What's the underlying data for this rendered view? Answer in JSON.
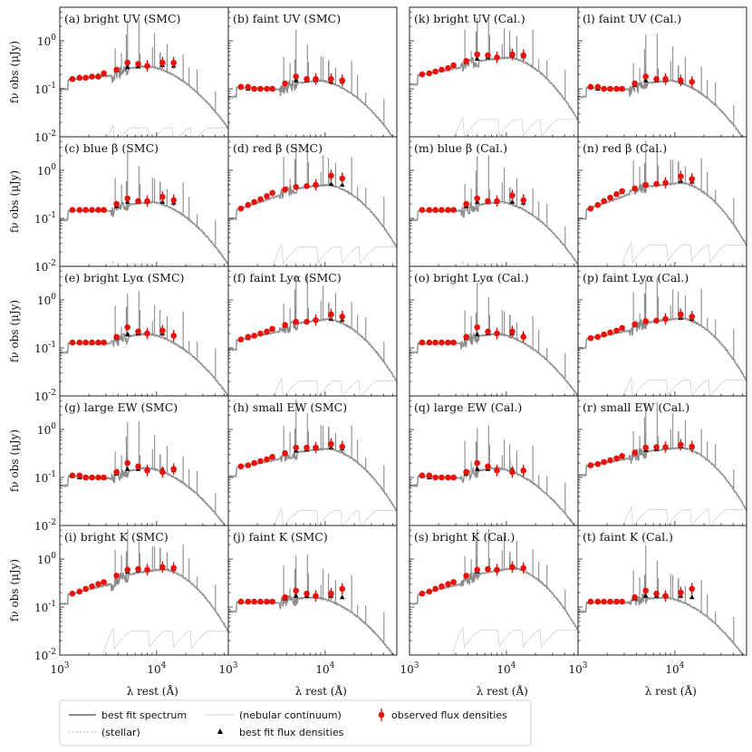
{
  "figure": {
    "ylabel": "fν obs (μJy)",
    "xlabel": "λ rest (Å)",
    "x_tick_labels": [
      "10^3",
      "10^4"
    ],
    "y_tick_labels": [
      "10^0",
      "10^-1",
      "10^-2"
    ]
  },
  "legend": {
    "spectrum": "best fit spectrum",
    "stellar": "(stellar)",
    "nebular": "(nebular continuum)",
    "model_flux": "best fit flux densities",
    "observed": "observed flux densities"
  },
  "colors": {
    "spectrum": "#8c8c8c",
    "stellar": "#b5b5b5",
    "nebular": "#d0d0d0",
    "observed": "#e8120c",
    "model": "#000000"
  },
  "chart_data": {
    "type": "scatter",
    "x_scale": "log",
    "y_scale": "log",
    "xlim": [
      1000,
      55000
    ],
    "ylim": [
      0.01,
      5
    ],
    "band_wavelengths": [
      1350,
      1600,
      1850,
      2150,
      2500,
      2850,
      3850,
      5000,
      6450,
      8000,
      11500,
      15000
    ],
    "panels": [
      {
        "label": "(a) bright UV (SMC)",
        "continuum": 0.3,
        "peak_w": 8000,
        "obs": [
          0.16,
          0.17,
          0.17,
          0.18,
          0.18,
          0.21,
          0.25,
          0.35,
          0.33,
          0.3,
          0.35,
          0.35
        ],
        "model": [
          0.16,
          0.17,
          0.17,
          0.18,
          0.19,
          0.2,
          0.24,
          0.28,
          0.29,
          0.29,
          0.31,
          0.3
        ]
      },
      {
        "label": "(b) faint UV (SMC)",
        "continuum": 0.15,
        "peak_w": 9000,
        "obs": [
          0.11,
          0.11,
          0.1,
          0.1,
          0.1,
          0.1,
          0.13,
          0.18,
          0.16,
          0.16,
          0.16,
          0.15
        ],
        "model": [
          0.11,
          0.1,
          0.1,
          0.1,
          0.1,
          0.1,
          0.13,
          0.15,
          0.15,
          0.15,
          0.14,
          0.14
        ]
      },
      {
        "label": "(k) bright UV (Cal.)",
        "continuum": 0.45,
        "peak_w": 11000,
        "obs": [
          0.2,
          0.21,
          0.23,
          0.25,
          0.27,
          0.31,
          0.38,
          0.52,
          0.5,
          0.45,
          0.52,
          0.5
        ],
        "model": [
          0.2,
          0.21,
          0.23,
          0.25,
          0.27,
          0.3,
          0.36,
          0.42,
          0.45,
          0.47,
          0.49,
          0.47
        ]
      },
      {
        "label": "(l) faint UV (Cal.)",
        "continuum": 0.15,
        "peak_w": 9000,
        "obs": [
          0.11,
          0.11,
          0.1,
          0.1,
          0.1,
          0.1,
          0.13,
          0.18,
          0.16,
          0.16,
          0.15,
          0.14
        ],
        "model": [
          0.11,
          0.1,
          0.1,
          0.1,
          0.1,
          0.1,
          0.12,
          0.15,
          0.15,
          0.15,
          0.14,
          0.14
        ]
      },
      {
        "label": "(c) blue β (SMC)",
        "continuum": 0.22,
        "peak_w": 9000,
        "obs": [
          0.15,
          0.15,
          0.15,
          0.15,
          0.15,
          0.15,
          0.2,
          0.26,
          0.23,
          0.23,
          0.28,
          0.24
        ],
        "model": [
          0.15,
          0.15,
          0.15,
          0.15,
          0.15,
          0.15,
          0.18,
          0.22,
          0.22,
          0.22,
          0.22,
          0.21
        ]
      },
      {
        "label": "(d) red β (SMC)",
        "continuum": 0.5,
        "peak_w": 11000,
        "obs": [
          0.16,
          0.19,
          0.22,
          0.25,
          0.29,
          0.34,
          0.4,
          0.45,
          0.47,
          0.5,
          0.78,
          0.68
        ],
        "model": [
          0.16,
          0.19,
          0.22,
          0.25,
          0.29,
          0.33,
          0.4,
          0.45,
          0.47,
          0.5,
          0.52,
          0.5
        ]
      },
      {
        "label": "(m) blue β (Cal.)",
        "continuum": 0.22,
        "peak_w": 9000,
        "obs": [
          0.15,
          0.15,
          0.15,
          0.15,
          0.15,
          0.15,
          0.2,
          0.26,
          0.23,
          0.23,
          0.3,
          0.24
        ],
        "model": [
          0.15,
          0.15,
          0.15,
          0.15,
          0.15,
          0.15,
          0.18,
          0.22,
          0.22,
          0.22,
          0.22,
          0.21
        ]
      },
      {
        "label": "(n) red β (Cal.)",
        "continuum": 0.55,
        "peak_w": 12000,
        "obs": [
          0.16,
          0.19,
          0.23,
          0.27,
          0.32,
          0.37,
          0.42,
          0.5,
          0.52,
          0.55,
          0.75,
          0.66
        ],
        "model": [
          0.16,
          0.19,
          0.23,
          0.27,
          0.31,
          0.35,
          0.42,
          0.48,
          0.52,
          0.56,
          0.6,
          0.58
        ]
      },
      {
        "label": "(e) bright Lyα (SMC)",
        "continuum": 0.2,
        "peak_w": 8000,
        "obs": [
          0.13,
          0.13,
          0.13,
          0.13,
          0.13,
          0.13,
          0.17,
          0.27,
          0.22,
          0.2,
          0.23,
          0.18
        ],
        "model": [
          0.13,
          0.13,
          0.13,
          0.13,
          0.13,
          0.13,
          0.16,
          0.19,
          0.2,
          0.2,
          0.2,
          0.19
        ]
      },
      {
        "label": "(f) faint Lyα (SMC)",
        "continuum": 0.4,
        "peak_w": 11000,
        "obs": [
          0.15,
          0.17,
          0.18,
          0.2,
          0.22,
          0.25,
          0.3,
          0.35,
          0.35,
          0.38,
          0.5,
          0.45
        ],
        "model": [
          0.15,
          0.16,
          0.18,
          0.2,
          0.22,
          0.24,
          0.29,
          0.34,
          0.36,
          0.38,
          0.4,
          0.38
        ]
      },
      {
        "label": "(o) bright Lyα (Cal.)",
        "continuum": 0.2,
        "peak_w": 8000,
        "obs": [
          0.13,
          0.13,
          0.13,
          0.13,
          0.13,
          0.13,
          0.17,
          0.27,
          0.22,
          0.2,
          0.22,
          0.17
        ],
        "model": [
          0.13,
          0.13,
          0.13,
          0.13,
          0.13,
          0.13,
          0.16,
          0.19,
          0.2,
          0.2,
          0.2,
          0.19
        ]
      },
      {
        "label": "(p) faint Lyα (Cal.)",
        "continuum": 0.42,
        "peak_w": 12000,
        "obs": [
          0.16,
          0.17,
          0.19,
          0.21,
          0.23,
          0.26,
          0.31,
          0.36,
          0.37,
          0.4,
          0.5,
          0.45
        ],
        "model": [
          0.16,
          0.17,
          0.19,
          0.21,
          0.23,
          0.25,
          0.3,
          0.35,
          0.37,
          0.4,
          0.42,
          0.4
        ]
      },
      {
        "label": "(g) large EW (SMC)",
        "continuum": 0.16,
        "peak_w": 8000,
        "obs": [
          0.11,
          0.11,
          0.1,
          0.1,
          0.1,
          0.1,
          0.13,
          0.2,
          0.17,
          0.14,
          0.13,
          0.15
        ],
        "model": [
          0.11,
          0.1,
          0.1,
          0.1,
          0.1,
          0.1,
          0.12,
          0.15,
          0.15,
          0.15,
          0.15,
          0.14
        ]
      },
      {
        "label": "(h) small EW (SMC)",
        "continuum": 0.4,
        "peak_w": 11000,
        "obs": [
          0.17,
          0.18,
          0.2,
          0.22,
          0.24,
          0.27,
          0.32,
          0.42,
          0.42,
          0.42,
          0.5,
          0.44
        ],
        "model": [
          0.17,
          0.18,
          0.2,
          0.22,
          0.24,
          0.26,
          0.31,
          0.36,
          0.38,
          0.4,
          0.42,
          0.4
        ]
      },
      {
        "label": "(q) large EW (Cal.)",
        "continuum": 0.16,
        "peak_w": 8000,
        "obs": [
          0.11,
          0.11,
          0.1,
          0.1,
          0.1,
          0.1,
          0.13,
          0.2,
          0.17,
          0.14,
          0.13,
          0.14
        ],
        "model": [
          0.11,
          0.1,
          0.1,
          0.1,
          0.1,
          0.1,
          0.12,
          0.15,
          0.15,
          0.15,
          0.15,
          0.14
        ]
      },
      {
        "label": "(r) small EW (Cal.)",
        "continuum": 0.42,
        "peak_w": 12000,
        "obs": [
          0.18,
          0.19,
          0.21,
          0.23,
          0.25,
          0.28,
          0.33,
          0.42,
          0.43,
          0.43,
          0.48,
          0.44
        ],
        "model": [
          0.18,
          0.19,
          0.21,
          0.23,
          0.25,
          0.27,
          0.32,
          0.37,
          0.39,
          0.42,
          0.44,
          0.42
        ]
      },
      {
        "label": "(i) bright K (SMC)",
        "continuum": 0.62,
        "peak_w": 12000,
        "obs": [
          0.19,
          0.21,
          0.24,
          0.27,
          0.3,
          0.33,
          0.45,
          0.6,
          0.62,
          0.6,
          0.68,
          0.65
        ],
        "model": [
          0.19,
          0.21,
          0.24,
          0.27,
          0.3,
          0.33,
          0.45,
          0.55,
          0.58,
          0.6,
          0.64,
          0.62
        ]
      },
      {
        "label": "(j) faint K (SMC)",
        "continuum": 0.16,
        "peak_w": 8000,
        "obs": [
          0.13,
          0.13,
          0.13,
          0.13,
          0.13,
          0.13,
          0.16,
          0.22,
          0.19,
          0.17,
          0.19,
          0.24
        ],
        "model": [
          0.13,
          0.13,
          0.13,
          0.13,
          0.13,
          0.13,
          0.15,
          0.17,
          0.17,
          0.17,
          0.17,
          0.16
        ]
      },
      {
        "label": "(s) bright K (Cal.)",
        "continuum": 0.65,
        "peak_w": 12000,
        "obs": [
          0.19,
          0.21,
          0.24,
          0.27,
          0.3,
          0.33,
          0.45,
          0.6,
          0.62,
          0.6,
          0.68,
          0.65
        ],
        "model": [
          0.19,
          0.21,
          0.24,
          0.27,
          0.3,
          0.33,
          0.45,
          0.55,
          0.6,
          0.62,
          0.66,
          0.64
        ]
      },
      {
        "label": "(t) faint K (Cal.)",
        "continuum": 0.16,
        "peak_w": 8000,
        "obs": [
          0.13,
          0.13,
          0.13,
          0.13,
          0.13,
          0.13,
          0.16,
          0.22,
          0.19,
          0.17,
          0.2,
          0.24
        ],
        "model": [
          0.13,
          0.13,
          0.13,
          0.13,
          0.13,
          0.13,
          0.15,
          0.17,
          0.17,
          0.17,
          0.17,
          0.16
        ]
      }
    ]
  }
}
